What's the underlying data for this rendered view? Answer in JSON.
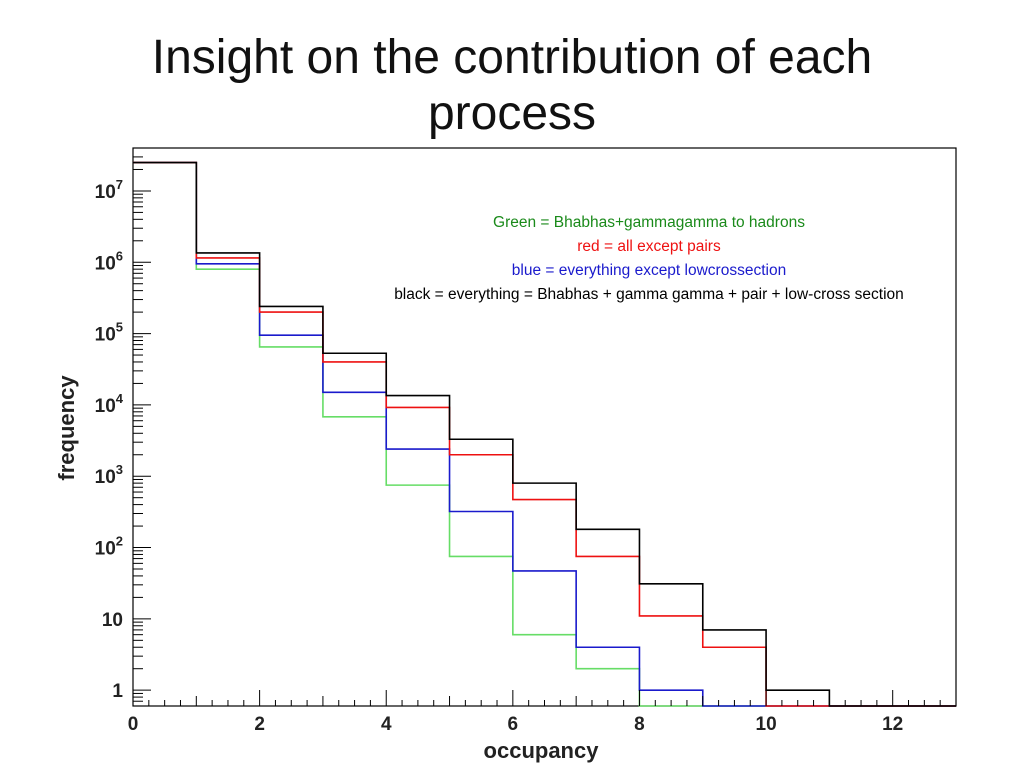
{
  "slide": {
    "title_line1": "Insight on the contribution of each",
    "title_line2": "process"
  },
  "chart_data": {
    "type": "step-histogram",
    "xlabel": "occupancy",
    "ylabel": "frequency",
    "xlim": [
      0,
      13
    ],
    "ylim": [
      0.6,
      40000000
    ],
    "yscale": "log",
    "x_ticks": [
      "0",
      "2",
      "4",
      "6",
      "8",
      "10",
      "12"
    ],
    "y_ticks": [
      {
        "value": 1,
        "label": "1"
      },
      {
        "value": 10,
        "label": "10"
      },
      {
        "value": 100,
        "base": "10",
        "exp": "2"
      },
      {
        "value": 1000,
        "base": "10",
        "exp": "3"
      },
      {
        "value": 10000,
        "base": "10",
        "exp": "4"
      },
      {
        "value": 100000,
        "base": "10",
        "exp": "5"
      },
      {
        "value": 1000000,
        "base": "10",
        "exp": "6"
      },
      {
        "value": 10000000,
        "base": "10",
        "exp": "7"
      }
    ],
    "bin_edges": [
      0,
      1,
      2,
      3,
      4,
      5,
      6,
      7,
      8,
      9,
      10,
      11,
      12,
      13
    ],
    "legend_lines": [
      {
        "text": "Green = Bhabhas+gammagamma to hadrons",
        "color": "#1a8a1a"
      },
      {
        "text": "red = all except pairs",
        "color": "#ee1111"
      },
      {
        "text": "blue = everything except lowcrossection",
        "color": "#1a1acc"
      },
      {
        "text": "black = everything = Bhabhas + gamma gamma + pair + low-cross section",
        "color": "#000000"
      }
    ],
    "series": [
      {
        "color": "#000000",
        "values": [
          25000000,
          1350000,
          240000,
          53000,
          13500,
          3300,
          800,
          180,
          31,
          7,
          1,
          0,
          0
        ]
      },
      {
        "color": "#ee1111",
        "values": [
          25000000,
          1150000,
          200000,
          40000,
          9200,
          2000,
          470,
          75,
          11,
          4,
          0,
          0,
          0
        ]
      },
      {
        "color": "#1a1acc",
        "values": [
          25000000,
          950000,
          95000,
          15000,
          2400,
          320,
          47,
          4,
          1,
          0,
          0,
          0,
          0
        ]
      },
      {
        "color": "#66dd66",
        "values": [
          25000000,
          800000,
          65000,
          6800,
          750,
          75,
          6,
          2,
          0,
          0,
          0,
          0,
          0
        ]
      }
    ]
  }
}
